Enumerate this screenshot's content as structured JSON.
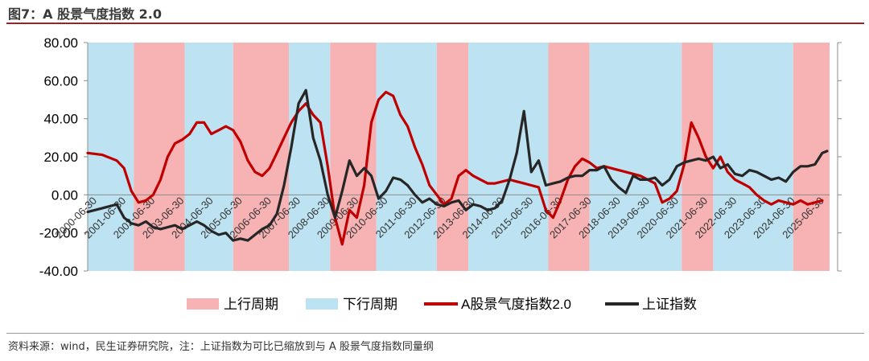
{
  "figure": {
    "title": "图7：A 股景气度指数 2.0",
    "source": "资料来源：wind，民生证券研究院，注：上证指数为可比已缩放到与 A 股景气度指数同量纲"
  },
  "chart_data": {
    "type": "line",
    "title": "",
    "xlabel": "",
    "ylabel": "",
    "ylim": [
      -40,
      80
    ],
    "yticks": [
      "-40.00",
      "-20.00",
      "0.00",
      "20.00",
      "40.00",
      "60.00",
      "80.00"
    ],
    "x_range": [
      "2000-06-30",
      "2025-12-31"
    ],
    "x_tick_labels": [
      "2000-06-30",
      "2001-06-30",
      "2002-06-30",
      "2003-06-30",
      "2004-06-30",
      "2005-06-30",
      "2006-06-30",
      "2007-06-30",
      "2008-06-30",
      "2009-06-30",
      "2010-06-30",
      "2011-06-30",
      "2012-06-30",
      "2013-06-30",
      "2014-06-30",
      "2015-06-30",
      "2016-06-30",
      "2017-06-30",
      "2018-06-30",
      "2019-06-30",
      "2020-06-30",
      "2021-06-30",
      "2022-06-30",
      "2023-06-30",
      "2024-06-30",
      "2025-06-30"
    ],
    "colors": {
      "up": "#f7b2b4",
      "down": "#bde3f2",
      "index": "#c00000",
      "sse": "#262626"
    },
    "shading": [
      {
        "type": "down",
        "start": "2000-06-30",
        "end": "2002-01-31"
      },
      {
        "type": "up",
        "start": "2002-01-31",
        "end": "2003-10-31"
      },
      {
        "type": "down",
        "start": "2003-10-31",
        "end": "2005-06-30"
      },
      {
        "type": "up",
        "start": "2005-06-30",
        "end": "2007-05-31"
      },
      {
        "type": "down",
        "start": "2007-05-31",
        "end": "2008-10-31"
      },
      {
        "type": "up",
        "start": "2008-10-31",
        "end": "2010-05-31"
      },
      {
        "type": "down",
        "start": "2010-05-31",
        "end": "2012-06-30"
      },
      {
        "type": "up",
        "start": "2012-06-30",
        "end": "2013-07-31"
      },
      {
        "type": "down",
        "start": "2013-07-31",
        "end": "2016-04-30"
      },
      {
        "type": "up",
        "start": "2016-04-30",
        "end": "2017-09-30"
      },
      {
        "type": "down",
        "start": "2017-09-30",
        "end": "2020-11-30"
      },
      {
        "type": "up",
        "start": "2020-11-30",
        "end": "2021-12-31"
      },
      {
        "type": "down",
        "start": "2021-12-31",
        "end": "2024-09-30"
      },
      {
        "type": "up",
        "start": "2024-09-30",
        "end": "2025-12-31"
      }
    ],
    "legend": [
      {
        "label": "上行周期",
        "kind": "box",
        "color": "#f7b2b4"
      },
      {
        "label": "下行周期",
        "kind": "box",
        "color": "#bde3f2"
      },
      {
        "label": "A股景气度指数2.0",
        "kind": "line",
        "color": "#c00000"
      },
      {
        "label": "上证指数",
        "kind": "line",
        "color": "#262626"
      }
    ],
    "series": [
      {
        "name": "A股景气度指数2.0",
        "color": "#c00000",
        "points": [
          [
            "2000-06-30",
            22
          ],
          [
            "2000-12-31",
            21
          ],
          [
            "2001-06-30",
            18
          ],
          [
            "2001-09-30",
            14
          ],
          [
            "2001-12-31",
            2
          ],
          [
            "2002-03-31",
            -4
          ],
          [
            "2002-06-30",
            -3
          ],
          [
            "2002-09-30",
            0
          ],
          [
            "2002-12-31",
            8
          ],
          [
            "2003-03-31",
            20
          ],
          [
            "2003-06-30",
            27
          ],
          [
            "2003-09-30",
            29
          ],
          [
            "2003-12-31",
            32
          ],
          [
            "2004-03-31",
            38
          ],
          [
            "2004-06-30",
            38
          ],
          [
            "2004-09-30",
            32
          ],
          [
            "2004-12-31",
            34
          ],
          [
            "2005-03-31",
            36
          ],
          [
            "2005-06-30",
            34
          ],
          [
            "2005-09-30",
            28
          ],
          [
            "2005-12-31",
            18
          ],
          [
            "2006-03-31",
            12
          ],
          [
            "2006-06-30",
            10
          ],
          [
            "2006-09-30",
            14
          ],
          [
            "2006-12-31",
            22
          ],
          [
            "2007-03-31",
            30
          ],
          [
            "2007-06-30",
            38
          ],
          [
            "2007-09-30",
            44
          ],
          [
            "2007-12-31",
            48
          ],
          [
            "2008-03-31",
            42
          ],
          [
            "2008-06-30",
            38
          ],
          [
            "2008-09-30",
            15
          ],
          [
            "2008-12-31",
            -12
          ],
          [
            "2009-03-31",
            -26
          ],
          [
            "2009-06-30",
            -8
          ],
          [
            "2009-09-30",
            -12
          ],
          [
            "2009-12-31",
            5
          ],
          [
            "2010-03-31",
            38
          ],
          [
            "2010-06-30",
            50
          ],
          [
            "2010-09-30",
            54
          ],
          [
            "2010-12-31",
            52
          ],
          [
            "2011-03-31",
            42
          ],
          [
            "2011-06-30",
            36
          ],
          [
            "2011-09-30",
            25
          ],
          [
            "2011-12-31",
            16
          ],
          [
            "2012-03-31",
            5
          ],
          [
            "2012-06-30",
            0
          ],
          [
            "2012-09-30",
            -5
          ],
          [
            "2012-12-31",
            -2
          ],
          [
            "2013-03-31",
            10
          ],
          [
            "2013-06-30",
            13
          ],
          [
            "2013-09-30",
            10
          ],
          [
            "2013-12-31",
            8
          ],
          [
            "2014-03-31",
            6
          ],
          [
            "2014-06-30",
            6
          ],
          [
            "2014-09-30",
            7
          ],
          [
            "2014-12-31",
            8
          ],
          [
            "2015-03-31",
            7
          ],
          [
            "2015-06-30",
            6
          ],
          [
            "2015-09-30",
            5
          ],
          [
            "2015-12-31",
            4
          ],
          [
            "2016-03-31",
            -8
          ],
          [
            "2016-06-30",
            -12
          ],
          [
            "2016-09-30",
            -3
          ],
          [
            "2016-12-31",
            8
          ],
          [
            "2017-03-31",
            15
          ],
          [
            "2017-06-30",
            19
          ],
          [
            "2017-09-30",
            17
          ],
          [
            "2017-12-31",
            14
          ],
          [
            "2018-03-31",
            15
          ],
          [
            "2018-06-30",
            14
          ],
          [
            "2018-09-30",
            13
          ],
          [
            "2018-12-31",
            12
          ],
          [
            "2019-03-31",
            11
          ],
          [
            "2019-06-30",
            10
          ],
          [
            "2019-09-30",
            8
          ],
          [
            "2019-12-31",
            6
          ],
          [
            "2020-03-31",
            -4
          ],
          [
            "2020-06-30",
            -2
          ],
          [
            "2020-09-30",
            2
          ],
          [
            "2020-12-31",
            16
          ],
          [
            "2021-03-31",
            38
          ],
          [
            "2021-06-30",
            30
          ],
          [
            "2021-09-30",
            20
          ],
          [
            "2021-12-31",
            14
          ],
          [
            "2022-03-31",
            20
          ],
          [
            "2022-06-30",
            12
          ],
          [
            "2022-09-30",
            8
          ],
          [
            "2022-12-31",
            6
          ],
          [
            "2023-03-31",
            4
          ],
          [
            "2023-06-30",
            0
          ],
          [
            "2023-09-30",
            -3
          ],
          [
            "2023-12-31",
            -5
          ],
          [
            "2024-03-31",
            -3
          ],
          [
            "2024-06-30",
            -4
          ],
          [
            "2024-09-30",
            -5
          ],
          [
            "2024-12-31",
            -3
          ],
          [
            "2025-03-31",
            -5
          ],
          [
            "2025-06-30",
            -4
          ],
          [
            "2025-09-30",
            -3
          ]
        ]
      },
      {
        "name": "上证指数",
        "color": "#262626",
        "points": [
          [
            "2000-06-30",
            -9
          ],
          [
            "2000-12-31",
            -7
          ],
          [
            "2001-06-30",
            -5
          ],
          [
            "2001-09-30",
            -12
          ],
          [
            "2001-12-31",
            -15
          ],
          [
            "2002-03-31",
            -16
          ],
          [
            "2002-06-30",
            -14
          ],
          [
            "2002-09-30",
            -17
          ],
          [
            "2002-12-31",
            -18
          ],
          [
            "2003-03-31",
            -17
          ],
          [
            "2003-06-30",
            -16
          ],
          [
            "2003-09-30",
            -18
          ],
          [
            "2003-12-31",
            -16
          ],
          [
            "2004-03-31",
            -14
          ],
          [
            "2004-06-30",
            -16
          ],
          [
            "2004-09-30",
            -19
          ],
          [
            "2004-12-31",
            -21
          ],
          [
            "2005-03-31",
            -20
          ],
          [
            "2005-06-30",
            -24
          ],
          [
            "2005-09-30",
            -23
          ],
          [
            "2005-12-31",
            -24
          ],
          [
            "2006-03-31",
            -21
          ],
          [
            "2006-06-30",
            -18
          ],
          [
            "2006-09-30",
            -16
          ],
          [
            "2006-12-31",
            -10
          ],
          [
            "2007-03-31",
            5
          ],
          [
            "2007-06-30",
            25
          ],
          [
            "2007-09-30",
            48
          ],
          [
            "2007-12-31",
            55
          ],
          [
            "2008-03-31",
            30
          ],
          [
            "2008-06-30",
            18
          ],
          [
            "2008-09-30",
            0
          ],
          [
            "2008-12-31",
            -12
          ],
          [
            "2009-03-31",
            2
          ],
          [
            "2009-06-30",
            18
          ],
          [
            "2009-09-30",
            10
          ],
          [
            "2009-12-31",
            14
          ],
          [
            "2010-03-31",
            10
          ],
          [
            "2010-06-30",
            -2
          ],
          [
            "2010-09-30",
            2
          ],
          [
            "2010-12-31",
            9
          ],
          [
            "2011-03-31",
            8
          ],
          [
            "2011-06-30",
            5
          ],
          [
            "2011-09-30",
            0
          ],
          [
            "2011-12-31",
            -4
          ],
          [
            "2012-03-31",
            -2
          ],
          [
            "2012-06-30",
            -5
          ],
          [
            "2012-09-30",
            -6
          ],
          [
            "2012-12-31",
            -4
          ],
          [
            "2013-03-31",
            -3
          ],
          [
            "2013-06-30",
            -8
          ],
          [
            "2013-09-30",
            -5
          ],
          [
            "2013-12-31",
            -6
          ],
          [
            "2014-03-31",
            -8
          ],
          [
            "2014-06-30",
            -7
          ],
          [
            "2014-09-30",
            -3
          ],
          [
            "2014-12-31",
            8
          ],
          [
            "2015-03-31",
            22
          ],
          [
            "2015-06-30",
            44
          ],
          [
            "2015-09-30",
            12
          ],
          [
            "2015-12-31",
            18
          ],
          [
            "2016-03-31",
            5
          ],
          [
            "2016-06-30",
            6
          ],
          [
            "2016-09-30",
            7
          ],
          [
            "2016-12-31",
            9
          ],
          [
            "2017-03-31",
            10
          ],
          [
            "2017-06-30",
            10
          ],
          [
            "2017-09-30",
            13
          ],
          [
            "2017-12-31",
            13
          ],
          [
            "2018-03-31",
            15
          ],
          [
            "2018-06-30",
            8
          ],
          [
            "2018-09-30",
            4
          ],
          [
            "2018-12-31",
            1
          ],
          [
            "2019-03-31",
            10
          ],
          [
            "2019-06-30",
            8
          ],
          [
            "2019-09-30",
            8
          ],
          [
            "2019-12-31",
            9
          ],
          [
            "2020-03-31",
            5
          ],
          [
            "2020-06-30",
            8
          ],
          [
            "2020-09-30",
            15
          ],
          [
            "2020-12-31",
            17
          ],
          [
            "2021-03-31",
            18
          ],
          [
            "2021-06-30",
            19
          ],
          [
            "2021-09-30",
            18
          ],
          [
            "2021-12-31",
            20
          ],
          [
            "2022-03-31",
            14
          ],
          [
            "2022-06-30",
            16
          ],
          [
            "2022-09-30",
            11
          ],
          [
            "2022-12-31",
            10
          ],
          [
            "2023-03-31",
            13
          ],
          [
            "2023-06-30",
            12
          ],
          [
            "2023-09-30",
            10
          ],
          [
            "2023-12-31",
            8
          ],
          [
            "2024-03-31",
            9
          ],
          [
            "2024-06-30",
            7
          ],
          [
            "2024-09-30",
            12
          ],
          [
            "2024-12-31",
            15
          ],
          [
            "2025-03-31",
            15
          ],
          [
            "2025-06-30",
            16
          ],
          [
            "2025-09-30",
            22
          ],
          [
            "2025-11-30",
            23
          ]
        ]
      }
    ]
  }
}
